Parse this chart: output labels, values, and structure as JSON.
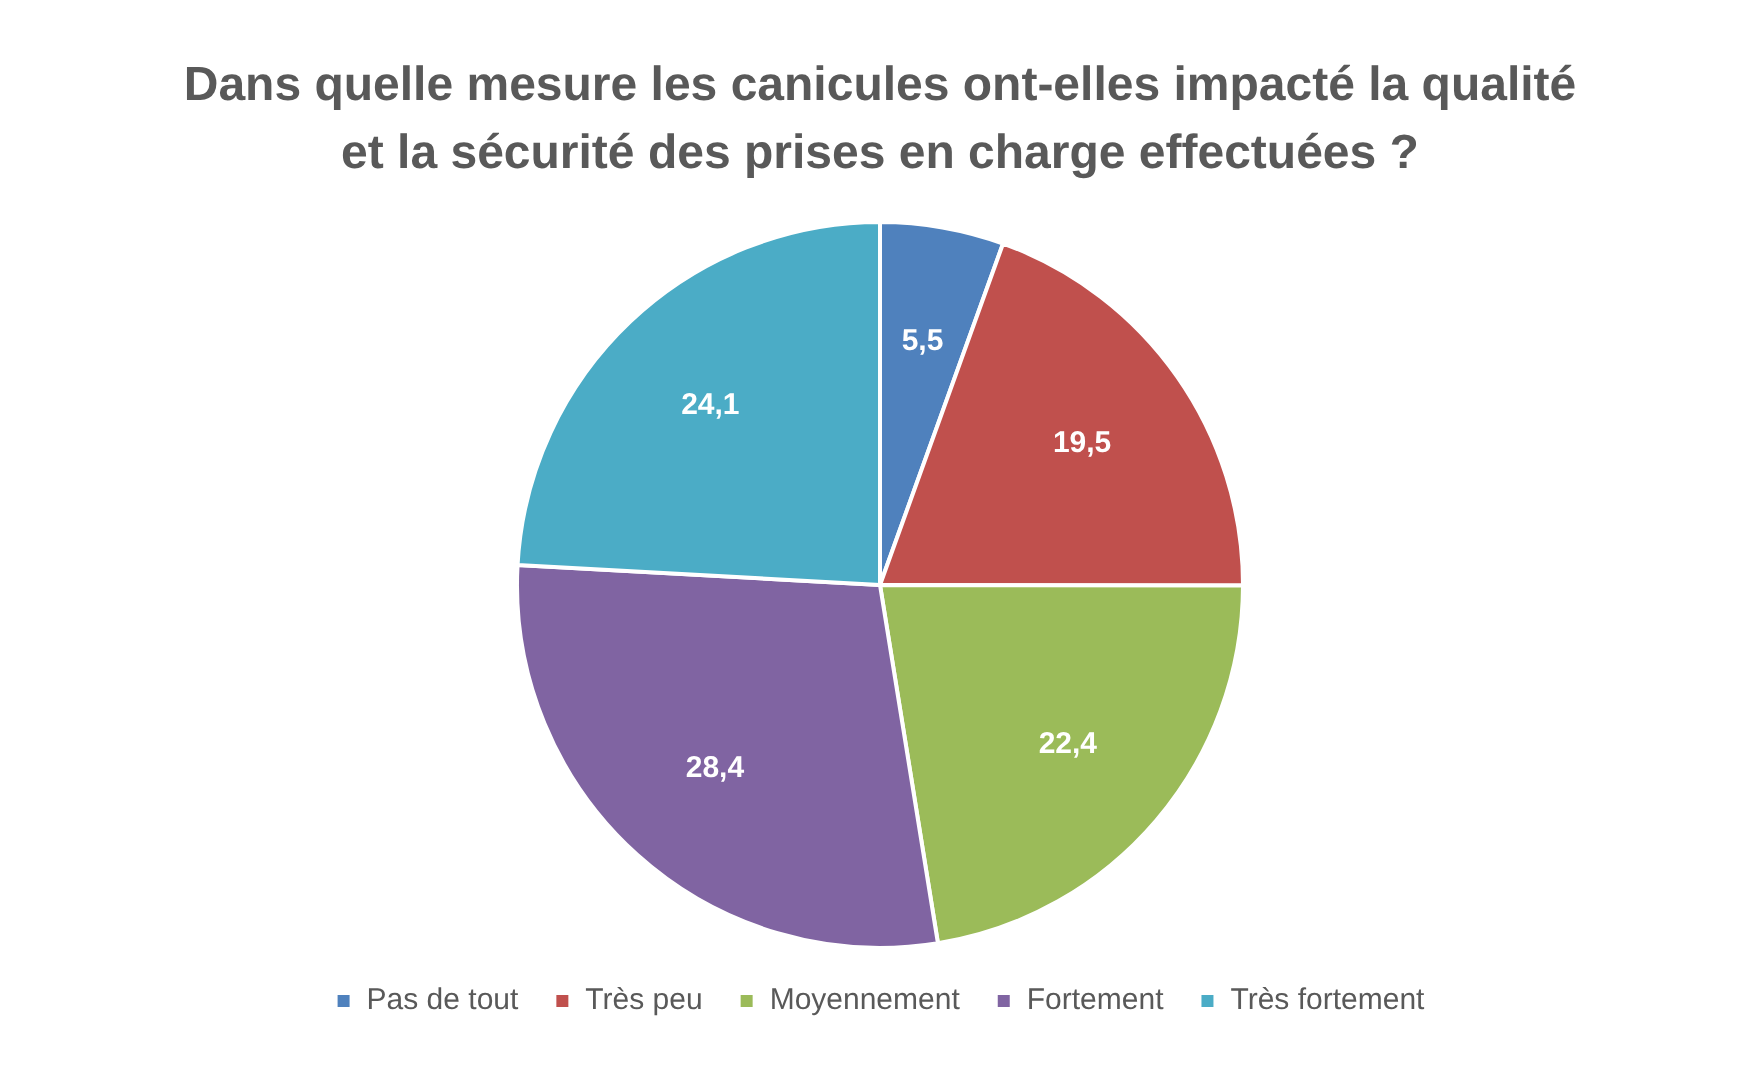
{
  "chart_data": {
    "type": "pie",
    "title": "Dans quelle mesure les canicules ont-elles impacté la qualité et la sécurité des prises en charge effectuées ?",
    "categories": [
      "Pas de tout",
      "Très peu",
      "Moyennement",
      "Fortement",
      "Très fortement"
    ],
    "values": [
      5.5,
      19.5,
      22.4,
      28.4,
      24.1
    ],
    "value_labels": [
      "5,5",
      "19,5",
      "22,4",
      "28,4",
      "24,1"
    ],
    "colors": [
      "#4f81bd",
      "#c0504d",
      "#9bbb59",
      "#8064a2",
      "#4bacc6"
    ],
    "legend": "bottom"
  }
}
